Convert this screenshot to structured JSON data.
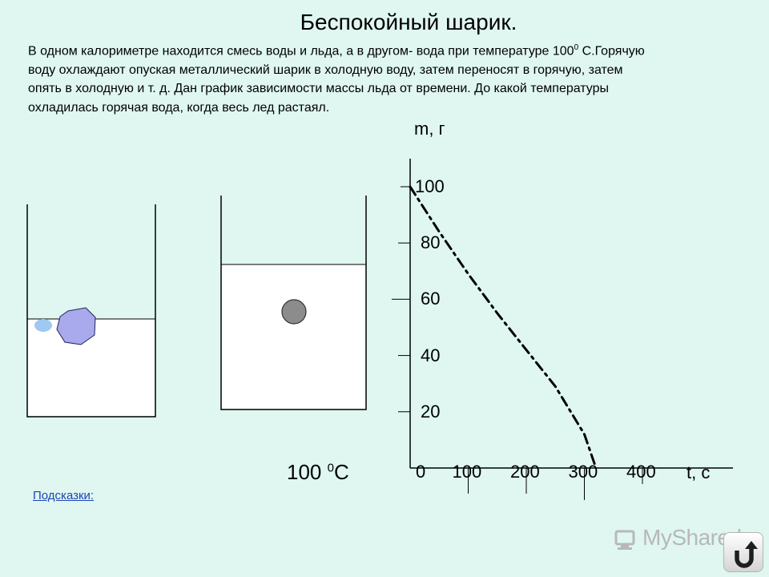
{
  "title": "Беспокойный шарик.",
  "problem": {
    "text_part1": "В одном калориметре находится смесь воды и льда, а в другом- вода при температуре 100",
    "sup": "0",
    "text_part2": " С.Горячую воду охлаждают опуская металлический шарик в холодную воду, затем переносят в горячую, затем опять в холодную и т. д. Дан график зависимости массы льда от времени. До какой температуры охладилась горячая вода, когда весь лед растаял."
  },
  "hot_water_label": {
    "value": "100 ",
    "sup": "0",
    "unit": "C"
  },
  "chart_data": {
    "type": "line",
    "ylabel": "m, г",
    "xlabel": "t, с",
    "y_ticks": [
      "100",
      "80",
      "60",
      "40",
      "20"
    ],
    "x_ticks": [
      "0",
      "100",
      "200",
      "300",
      "400"
    ],
    "xlim": [
      0,
      400
    ],
    "ylim": [
      0,
      100
    ],
    "series": [
      {
        "x": [
          0,
          50,
          100,
          150,
          200,
          250,
          300,
          320
        ],
        "y": [
          100,
          84,
          69,
          55,
          42,
          29,
          12,
          0
        ]
      }
    ]
  },
  "hints_link": "Подсказки:",
  "watermark": "MyShared",
  "colors": {
    "background": "#dff7f0",
    "ice_small": "#9ec9f0",
    "ice_large": "#a9a9ee",
    "ball": "#8c8c8c",
    "link": "#1a44b8"
  },
  "icons": {
    "watermark": "myshared-logo-icon",
    "nav": "return-arrow-icon"
  }
}
